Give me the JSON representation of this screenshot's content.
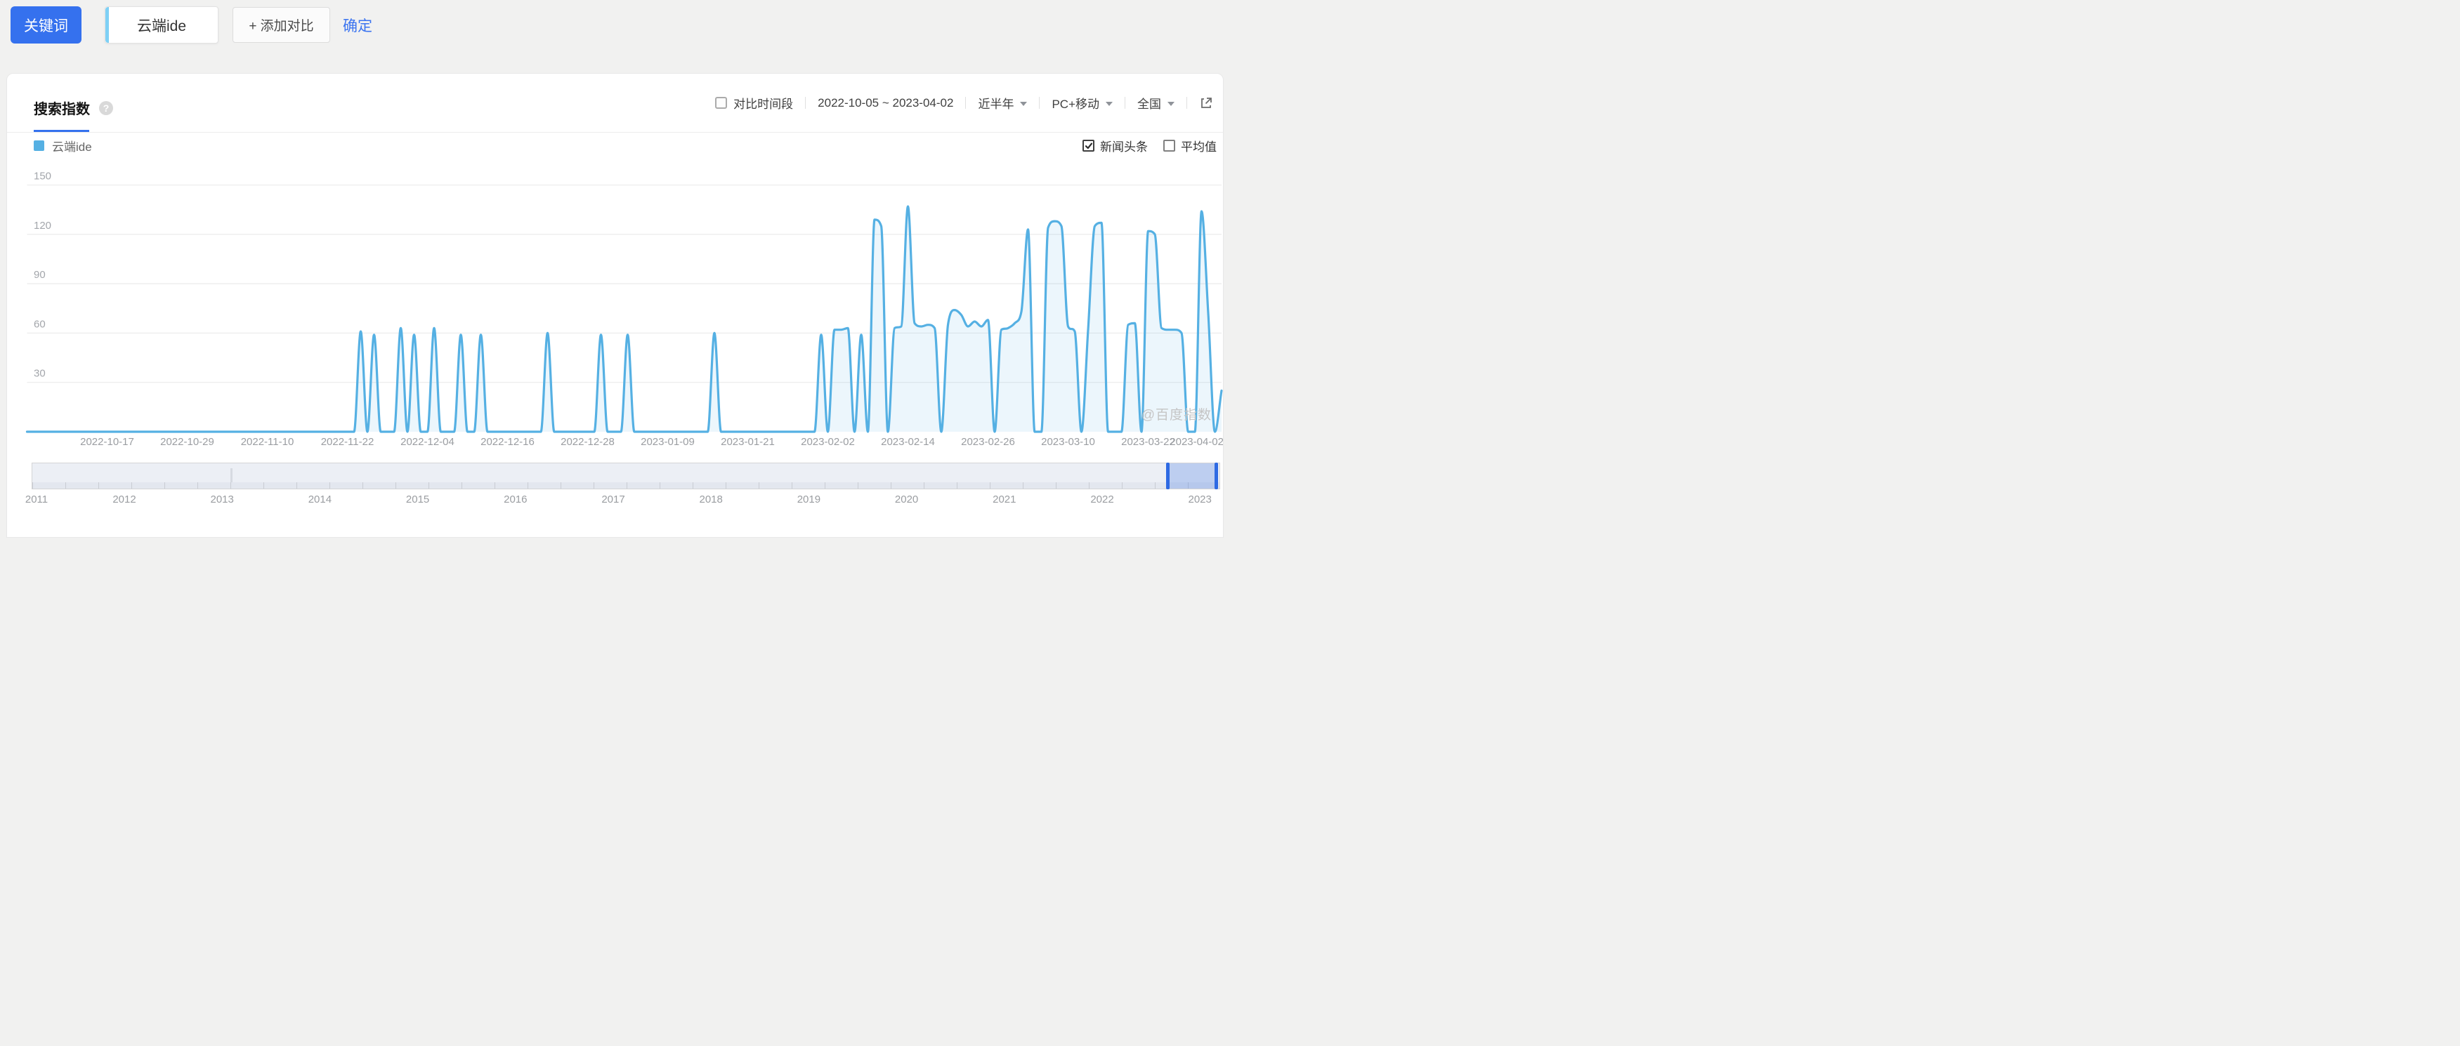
{
  "toolbar": {
    "keyword_button": "关键词",
    "keyword_input": {
      "value": "云端ide"
    },
    "add_compare_button": "+ 添加对比",
    "confirm_link": "确定"
  },
  "panel": {
    "tab": "搜索指数",
    "help_icon": "?",
    "controls": {
      "compare_period_label": "对比时间段",
      "date_range": "2022-10-05 ~ 2023-04-02",
      "time_dropdown": "近半年",
      "device_dropdown": "PC+移动",
      "region_dropdown": "全国"
    },
    "legend": {
      "series_label": "云端ide",
      "news_checkbox_label": "新闻头条",
      "news_checked": true,
      "average_checkbox_label": "平均值",
      "average_checked": false
    },
    "watermark": "@百度指数"
  },
  "chart_data": {
    "type": "line",
    "title": "搜索指数",
    "smooth": true,
    "grid": true,
    "legend_position": "top-left",
    "start_date": "2022-10-05",
    "end_date": "2023-04-02",
    "ylim": [
      0,
      150
    ],
    "yticks": [
      30,
      60,
      90,
      120,
      150
    ],
    "xticks": [
      {
        "label": "2022-10-17",
        "day": 12
      },
      {
        "label": "2022-10-29",
        "day": 24
      },
      {
        "label": "2022-11-10",
        "day": 36
      },
      {
        "label": "2022-11-22",
        "day": 48
      },
      {
        "label": "2022-12-04",
        "day": 60
      },
      {
        "label": "2022-12-16",
        "day": 72
      },
      {
        "label": "2022-12-28",
        "day": 84
      },
      {
        "label": "2023-01-09",
        "day": 96
      },
      {
        "label": "2023-01-21",
        "day": 108
      },
      {
        "label": "2023-02-02",
        "day": 120
      },
      {
        "label": "2023-02-14",
        "day": 132
      },
      {
        "label": "2023-02-26",
        "day": 144
      },
      {
        "label": "2023-03-10",
        "day": 156
      },
      {
        "label": "2023-03-22",
        "day": 168
      },
      {
        "label": "2023-04-02",
        "day": 179
      }
    ],
    "series": [
      {
        "name": "云端ide",
        "color": "#55b0e3",
        "values": [
          0,
          0,
          0,
          0,
          0,
          0,
          0,
          0,
          0,
          0,
          0,
          0,
          0,
          0,
          0,
          0,
          0,
          0,
          0,
          0,
          0,
          0,
          0,
          0,
          0,
          0,
          0,
          0,
          0,
          0,
          0,
          0,
          0,
          0,
          0,
          0,
          0,
          0,
          0,
          0,
          0,
          0,
          0,
          0,
          0,
          0,
          0,
          0,
          0,
          0,
          61,
          0,
          59,
          0,
          0,
          0,
          63,
          0,
          59,
          0,
          0,
          63,
          0,
          0,
          0,
          59,
          0,
          0,
          59,
          0,
          0,
          0,
          0,
          0,
          0,
          0,
          0,
          0,
          60,
          0,
          0,
          0,
          0,
          0,
          0,
          0,
          59,
          0,
          0,
          0,
          59,
          0,
          0,
          0,
          0,
          0,
          0,
          0,
          0,
          0,
          0,
          0,
          0,
          60,
          0,
          0,
          0,
          0,
          0,
          0,
          0,
          0,
          0,
          0,
          0,
          0,
          0,
          0,
          0,
          59,
          0,
          62,
          62,
          63,
          0,
          59,
          0,
          129,
          125,
          0,
          63,
          64,
          137,
          66,
          64,
          65,
          63,
          0,
          65,
          74,
          71,
          64,
          67,
          64,
          68,
          0,
          62,
          63,
          66,
          73,
          123,
          0,
          0,
          124,
          128,
          125,
          64,
          61,
          0,
          62,
          125,
          127,
          0,
          0,
          0,
          65,
          66,
          0,
          122,
          120,
          63,
          62,
          62,
          60,
          0,
          0,
          134,
          72,
          0,
          25
        ]
      }
    ]
  },
  "timeline": {
    "years": [
      "2011",
      "2012",
      "2013",
      "2014",
      "2015",
      "2016",
      "2017",
      "2018",
      "2019",
      "2020",
      "2021",
      "2022",
      "2023"
    ],
    "selection": {
      "from": "2022-10",
      "to": "2023-04"
    }
  }
}
